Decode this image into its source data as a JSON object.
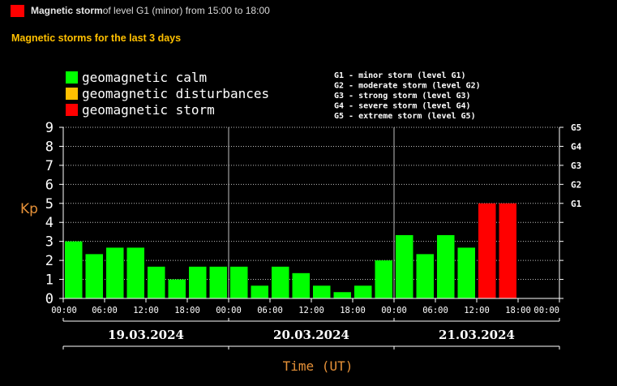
{
  "header": {
    "status_bold": "Magnetic storm",
    "status_rest": " of level G1 (minor) from 15:00 to 18:00",
    "status_color": "#ff0000"
  },
  "section_title": "Magnetic storms for the last 3 days",
  "legend": {
    "items": [
      {
        "label": "geomagnetic calm",
        "color": "#00ff00"
      },
      {
        "label": "geomagnetic disturbances",
        "color": "#ffc000"
      },
      {
        "label": "geomagnetic storm",
        "color": "#ff0000"
      }
    ],
    "g_levels": [
      "G1 - minor storm (level G1)",
      "G2 - moderate storm (level G2)",
      "G3 - strong storm (level G3)",
      "G4 - severe storm (level G4)",
      "G5 - extreme storm (level G5)"
    ]
  },
  "chart_data": {
    "type": "bar",
    "title": "Magnetic storms for the last 3 days",
    "ylabel": "Kp",
    "xlabel": "Time (UT)",
    "ylim": [
      0,
      9
    ],
    "yticks": [
      "0",
      "1",
      "2",
      "3",
      "4",
      "5",
      "6",
      "7",
      "8",
      "9"
    ],
    "right_ticks": [
      {
        "label": "G1",
        "kp": 5
      },
      {
        "label": "G2",
        "kp": 6
      },
      {
        "label": "G3",
        "kp": 7
      },
      {
        "label": "G4",
        "kp": 8
      },
      {
        "label": "G5",
        "kp": 9
      }
    ],
    "xtick_labels": [
      "00:00",
      "06:00",
      "12:00",
      "18:00",
      "00:00",
      "06:00",
      "12:00",
      "18:00",
      "00:00",
      "06:00",
      "12:00",
      "18:00",
      "00:00"
    ],
    "days": [
      "19.03.2024",
      "20.03.2024",
      "21.03.2024"
    ],
    "slots_per_day": 8,
    "values": [
      3.0,
      2.33,
      2.67,
      2.67,
      1.67,
      1.0,
      1.67,
      1.67,
      1.67,
      0.67,
      1.67,
      1.33,
      0.67,
      0.33,
      0.67,
      2.0,
      3.33,
      2.33,
      3.33,
      2.67,
      5.0,
      5.0
    ],
    "level_colors": {
      "calm": "#00ff00",
      "disturbance": "#ffc000",
      "storm": "#ff0000"
    },
    "grid": true
  }
}
